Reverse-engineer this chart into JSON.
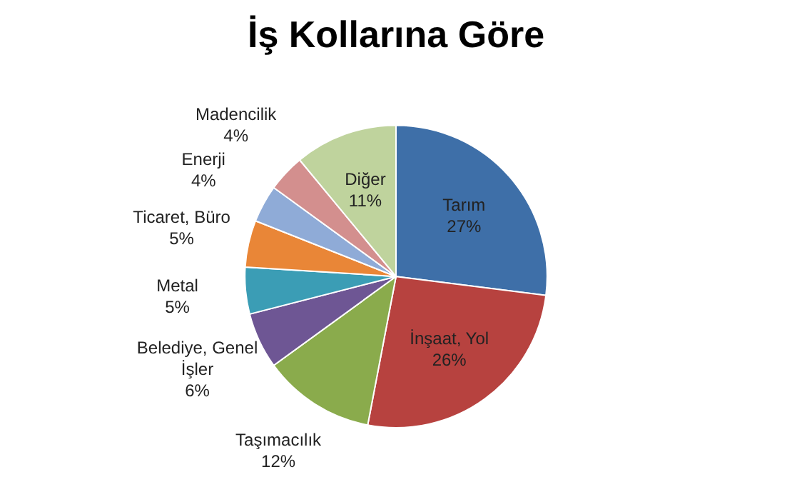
{
  "chart_data": {
    "type": "pie",
    "title": "İş Kollarına Göre",
    "categories": [
      "Tarım",
      "İnşaat, Yol",
      "Taşımacılık",
      "Belediye, Genel İşler",
      "Metal",
      "Ticaret, Büro",
      "Enerji",
      "Madencilik",
      "Diğer"
    ],
    "values": [
      27,
      26,
      12,
      6,
      5,
      5,
      4,
      4,
      11
    ],
    "colors": [
      "#3e6fa8",
      "#b7423f",
      "#8aab4c",
      "#6e5694",
      "#3b9db5",
      "#e98637",
      "#8fabd7",
      "#d38f8e",
      "#bfd39d"
    ],
    "value_labels": [
      "27%",
      "26%",
      "12%",
      "6%",
      "5%",
      "5%",
      "4%",
      "4%",
      "11%"
    ],
    "legend": false
  }
}
